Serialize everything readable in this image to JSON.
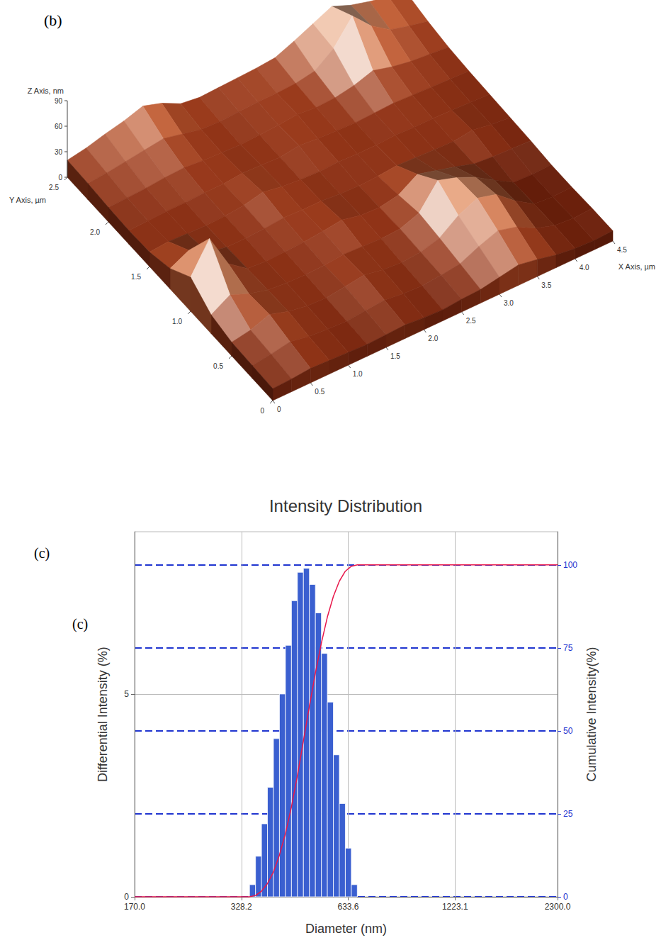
{
  "chart_data": [
    {
      "type": "surface",
      "panel": "(b)",
      "x_label": "X Axis, µm",
      "y_label": "Y Axis, µm",
      "z_label": "Z Axis, nm",
      "x": [
        0,
        0.25,
        0.5,
        0.75,
        1,
        1.25,
        1.5,
        1.75,
        2,
        2.25,
        2.5,
        2.75,
        3,
        3.25,
        3.5,
        3.75,
        4,
        4.25,
        4.5
      ],
      "y": [
        0,
        0.25,
        0.5,
        0.75,
        1,
        1.25,
        1.5,
        1.75,
        2,
        2.25,
        2.5
      ],
      "z": [
        [
          14,
          15,
          17,
          16,
          15,
          14,
          15,
          16,
          14,
          13,
          15,
          16,
          20,
          24,
          20,
          15,
          12,
          11,
          12
        ],
        [
          15,
          18,
          22,
          18,
          16,
          15,
          17,
          19,
          16,
          15,
          17,
          20,
          30,
          38,
          32,
          20,
          13,
          11,
          12
        ],
        [
          16,
          20,
          28,
          21,
          17,
          16,
          19,
          22,
          18,
          16,
          18,
          24,
          40,
          50,
          44,
          26,
          12,
          10,
          11
        ],
        [
          22,
          35,
          26,
          20,
          18,
          17,
          18,
          20,
          19,
          18,
          19,
          27,
          55,
          48,
          38,
          24,
          11,
          10,
          11
        ],
        [
          40,
          75,
          35,
          19,
          17,
          18,
          19,
          21,
          24,
          19,
          18,
          22,
          36,
          30,
          24,
          17,
          15,
          14,
          13
        ],
        [
          24,
          35,
          22,
          18,
          18,
          19,
          21,
          20,
          20,
          18,
          17,
          18,
          20,
          19,
          18,
          17,
          20,
          16,
          14
        ],
        [
          17,
          19,
          18,
          17,
          18,
          20,
          25,
          21,
          19,
          18,
          19,
          18,
          18,
          19,
          18,
          18,
          17,
          16,
          15
        ],
        [
          16,
          17,
          18,
          18,
          19,
          19,
          21,
          20,
          19,
          22,
          20,
          19,
          18,
          19,
          20,
          19,
          18,
          17,
          16
        ],
        [
          17,
          18,
          19,
          21,
          22,
          20,
          19,
          18,
          19,
          20,
          22,
          20,
          21,
          25,
          32,
          26,
          22,
          20,
          18
        ],
        [
          19,
          21,
          24,
          27,
          30,
          25,
          20,
          19,
          20,
          21,
          21,
          22,
          26,
          42,
          70,
          48,
          33,
          27,
          22
        ],
        [
          20,
          24,
          30,
          35,
          42,
          35,
          24,
          21,
          22,
          23,
          24,
          26,
          35,
          45,
          55,
          46,
          40,
          35,
          28
        ]
      ],
      "xlim": [
        0,
        4.5
      ],
      "xticks": [
        0,
        0.5,
        {
          "value": 1,
          "label": "1.0"
        },
        1.5,
        {
          "value": 2,
          "label": "2.0"
        },
        2.5,
        {
          "value": 3,
          "label": "3.0"
        },
        3.5,
        {
          "value": 4,
          "label": "4.0"
        },
        4.5
      ],
      "ylim": [
        0,
        2.5
      ],
      "yticks": [
        0,
        0.5,
        {
          "value": 1,
          "label": "1.0"
        },
        1.5,
        {
          "value": 2,
          "label": "2.0"
        },
        2.5
      ],
      "zlim": [
        0,
        90
      ],
      "zticks": [
        0,
        30,
        60,
        90
      ]
    },
    {
      "type": "histogram",
      "panel": "(c)",
      "annotations": [
        "(c)"
      ],
      "title": "Intensity Distribution",
      "x_label": "Diameter (nm)",
      "y_label": "Differential Intensity (%)",
      "y2_label": "Cumulative Intensity(%)",
      "log": "x",
      "grid": true,
      "color": "#3a5fd0",
      "bins": [
        345,
        358,
        371.4,
        385.3,
        399.8,
        414.8,
        430.4,
        446.6,
        463.4,
        480.8,
        498.9,
        517.6,
        537.1,
        557.2,
        578.2,
        599.9,
        622.4,
        645.8,
        670
      ],
      "values": [
        0.3,
        1.0,
        1.8,
        2.7,
        3.9,
        5.0,
        6.2,
        7.3,
        8.0,
        8.1,
        7.7,
        7.0,
        6.0,
        4.8,
        3.5,
        2.3,
        1.2,
        0.3
      ],
      "series": [
        {
          "type": "line",
          "axis": "y2",
          "color": "#e8174a",
          "x": [
            170,
            345,
            358,
            371.4,
            385.3,
            399.8,
            414.8,
            430.4,
            446.6,
            463.4,
            480.8,
            498.9,
            517.6,
            537.1,
            557.2,
            578.2,
            599.9,
            622.4,
            645.8,
            670,
            2300
          ],
          "values": [
            0,
            0,
            0.4,
            1.7,
            4.0,
            7.5,
            12.6,
            19.1,
            27.1,
            36.6,
            47.0,
            57.5,
            67.4,
            76.5,
            84.3,
            90.5,
            95.1,
            98.1,
            99.6,
            100,
            100
          ]
        }
      ],
      "xlim": [
        170,
        2300
      ],
      "xticks": [
        {
          "value": 170,
          "label": "170.0"
        },
        328.2,
        633.6,
        1223.1,
        {
          "value": 2300,
          "label": "2300.0"
        }
      ],
      "ylim": [
        0,
        9
      ],
      "yticks": [
        0,
        5
      ],
      "y2lim": [
        0,
        110
      ],
      "y2ticks": [
        0,
        25,
        50,
        75,
        100
      ]
    }
  ]
}
